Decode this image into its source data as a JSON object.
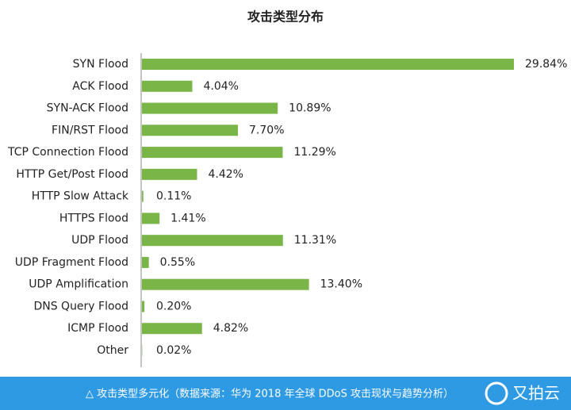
{
  "chart_data": {
    "type": "bar",
    "orientation": "horizontal",
    "title": "攻击类型分布",
    "categories": [
      "SYN Flood",
      "ACK Flood",
      "SYN-ACK Flood",
      "FIN/RST Flood",
      "TCP Connection Flood",
      "HTTP Get/Post Flood",
      "HTTP Slow Attack",
      "HTTPS Flood",
      "UDP Flood",
      "UDP Fragment Flood",
      "UDP Amplification",
      "DNS Query Flood",
      "ICMP Flood",
      "Other"
    ],
    "values": [
      29.84,
      4.04,
      10.89,
      7.7,
      11.29,
      4.42,
      0.11,
      1.41,
      11.31,
      0.55,
      13.4,
      0.2,
      4.82,
      0.02
    ],
    "value_labels": [
      "29.84%",
      "4.04%",
      "10.89%",
      "7.70%",
      "11.29%",
      "4.42%",
      "0.11%",
      "1.41%",
      "11.31%",
      "0.55%",
      "13.40%",
      "0.20%",
      "4.82%",
      "0.02%"
    ],
    "color": "#7ab547"
  },
  "footer": {
    "caption": "△ 攻击类型多元化（数据来源：华为 2018 年全球 DDoS 攻击现状与趋势分析）",
    "logo": "又拍云"
  }
}
